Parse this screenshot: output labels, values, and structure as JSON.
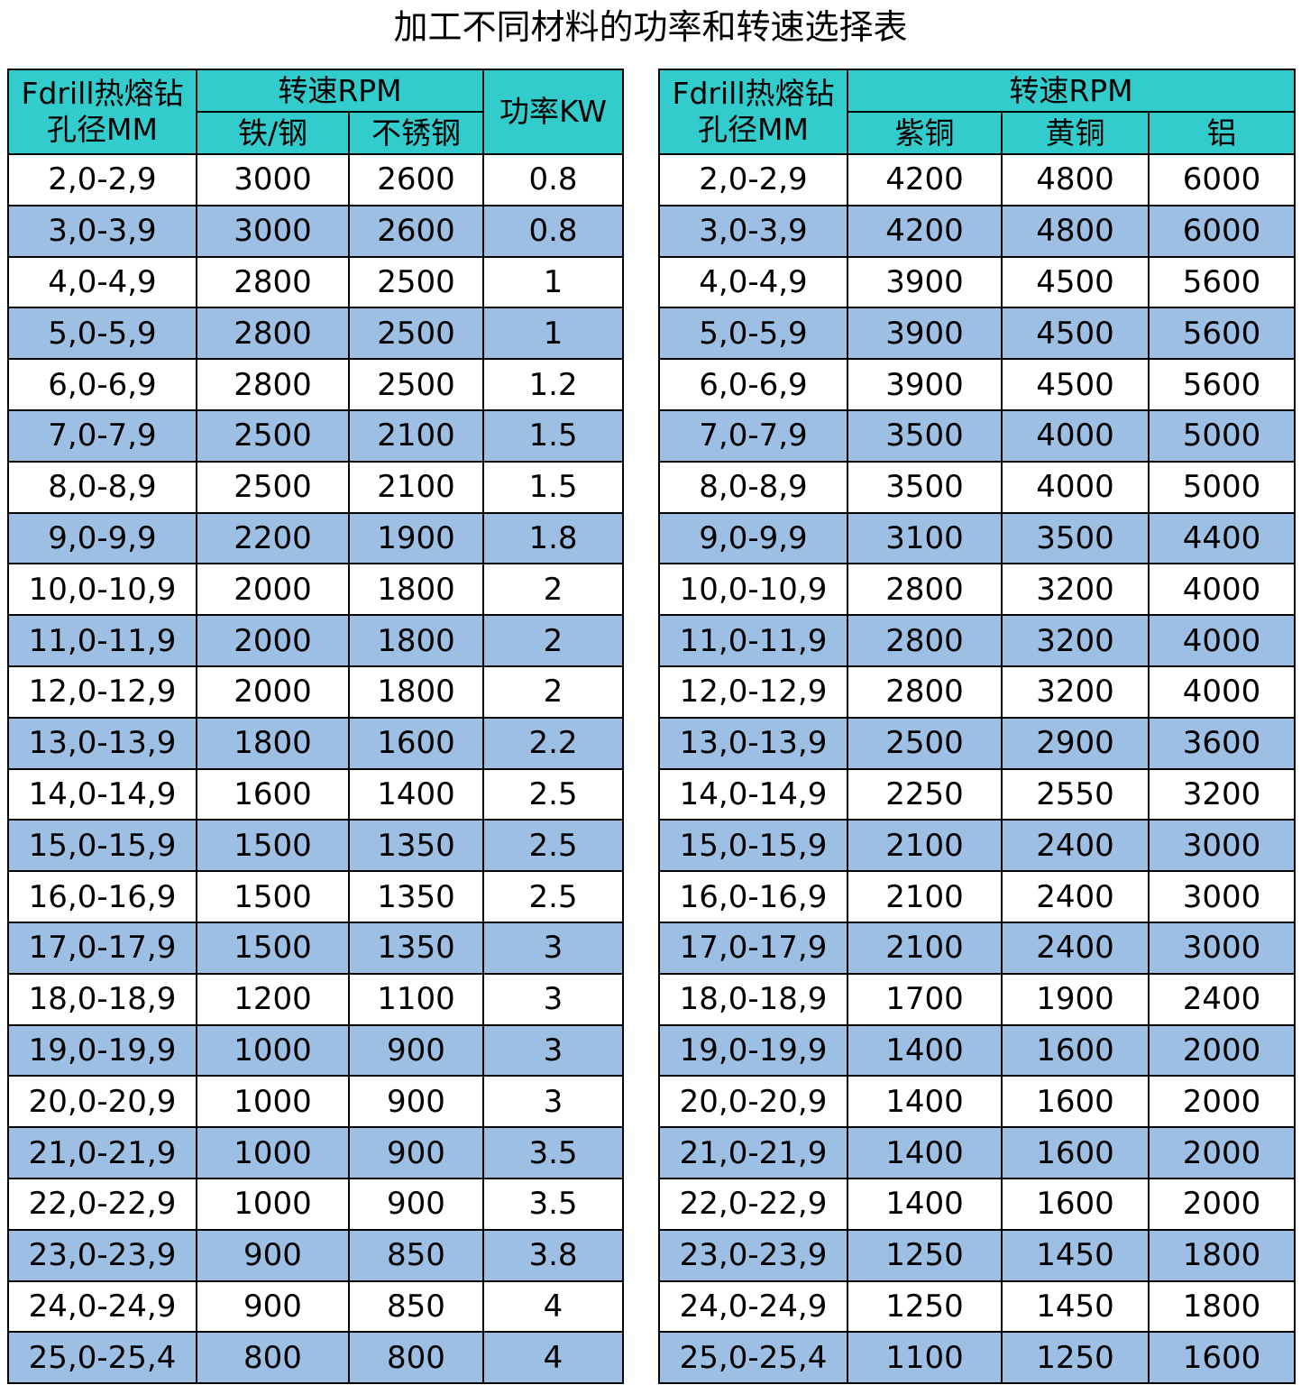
{
  "title": "加工不同材料的功率和转速选择表",
  "left": {
    "header": {
      "size_lines": [
        "Fdrill热熔钻",
        "孔径MM"
      ],
      "group": "转速RPM",
      "subcols": [
        "铁/钢",
        "不锈钢"
      ],
      "power": "功率KW"
    },
    "rows": [
      [
        "2,0-2,9",
        3000,
        2600,
        0.8
      ],
      [
        "3,0-3,9",
        3000,
        2600,
        0.8
      ],
      [
        "4,0-4,9",
        2800,
        2500,
        1
      ],
      [
        "5,0-5,9",
        2800,
        2500,
        1
      ],
      [
        "6,0-6,9",
        2800,
        2500,
        1.2
      ],
      [
        "7,0-7,9",
        2500,
        2100,
        1.5
      ],
      [
        "8,0-8,9",
        2500,
        2100,
        1.5
      ],
      [
        "9,0-9,9",
        2200,
        1900,
        1.8
      ],
      [
        "10,0-10,9",
        2000,
        1800,
        2
      ],
      [
        "11,0-11,9",
        2000,
        1800,
        2
      ],
      [
        "12,0-12,9",
        2000,
        1800,
        2
      ],
      [
        "13,0-13,9",
        1800,
        1600,
        2.2
      ],
      [
        "14,0-14,9",
        1600,
        1400,
        2.5
      ],
      [
        "15,0-15,9",
        1500,
        1350,
        2.5
      ],
      [
        "16,0-16,9",
        1500,
        1350,
        2.5
      ],
      [
        "17,0-17,9",
        1500,
        1350,
        3
      ],
      [
        "18,0-18,9",
        1200,
        1100,
        3
      ],
      [
        "19,0-19,9",
        1000,
        900,
        3
      ],
      [
        "20,0-20,9",
        1000,
        900,
        3
      ],
      [
        "21,0-21,9",
        1000,
        900,
        3.5
      ],
      [
        "22,0-22,9",
        1000,
        900,
        3.5
      ],
      [
        "23,0-23,9",
        900,
        850,
        3.8
      ],
      [
        "24,0-24,9",
        900,
        850,
        4
      ],
      [
        "25,0-25,4",
        800,
        800,
        4
      ]
    ]
  },
  "right": {
    "header": {
      "size_lines": [
        "Fdrill热熔钻",
        "孔径MM"
      ],
      "group": "转速RPM",
      "subcols": [
        "紫铜",
        "黄铜",
        "铝"
      ]
    },
    "rows": [
      [
        "2,0-2,9",
        4200,
        4800,
        6000
      ],
      [
        "3,0-3,9",
        4200,
        4800,
        6000
      ],
      [
        "4,0-4,9",
        3900,
        4500,
        5600
      ],
      [
        "5,0-5,9",
        3900,
        4500,
        5600
      ],
      [
        "6,0-6,9",
        3900,
        4500,
        5600
      ],
      [
        "7,0-7,9",
        3500,
        4000,
        5000
      ],
      [
        "8,0-8,9",
        3500,
        4000,
        5000
      ],
      [
        "9,0-9,9",
        3100,
        3500,
        4400
      ],
      [
        "10,0-10,9",
        2800,
        3200,
        4000
      ],
      [
        "11,0-11,9",
        2800,
        3200,
        4000
      ],
      [
        "12,0-12,9",
        2800,
        3200,
        4000
      ],
      [
        "13,0-13,9",
        2500,
        2900,
        3600
      ],
      [
        "14,0-14,9",
        2250,
        2550,
        3200
      ],
      [
        "15,0-15,9",
        2100,
        2400,
        3000
      ],
      [
        "16,0-16,9",
        2100,
        2400,
        3000
      ],
      [
        "17,0-17,9",
        2100,
        2400,
        3000
      ],
      [
        "18,0-18,9",
        1700,
        1900,
        2400
      ],
      [
        "19,0-19,9",
        1400,
        1600,
        2000
      ],
      [
        "20,0-20,9",
        1400,
        1600,
        2000
      ],
      [
        "21,0-21,9",
        1400,
        1600,
        2000
      ],
      [
        "22,0-22,9",
        1400,
        1600,
        2000
      ],
      [
        "23,0-23,9",
        1250,
        1450,
        1800
      ],
      [
        "24,0-24,9",
        1250,
        1450,
        1800
      ],
      [
        "25,0-25,4",
        1100,
        1250,
        1600
      ]
    ]
  }
}
